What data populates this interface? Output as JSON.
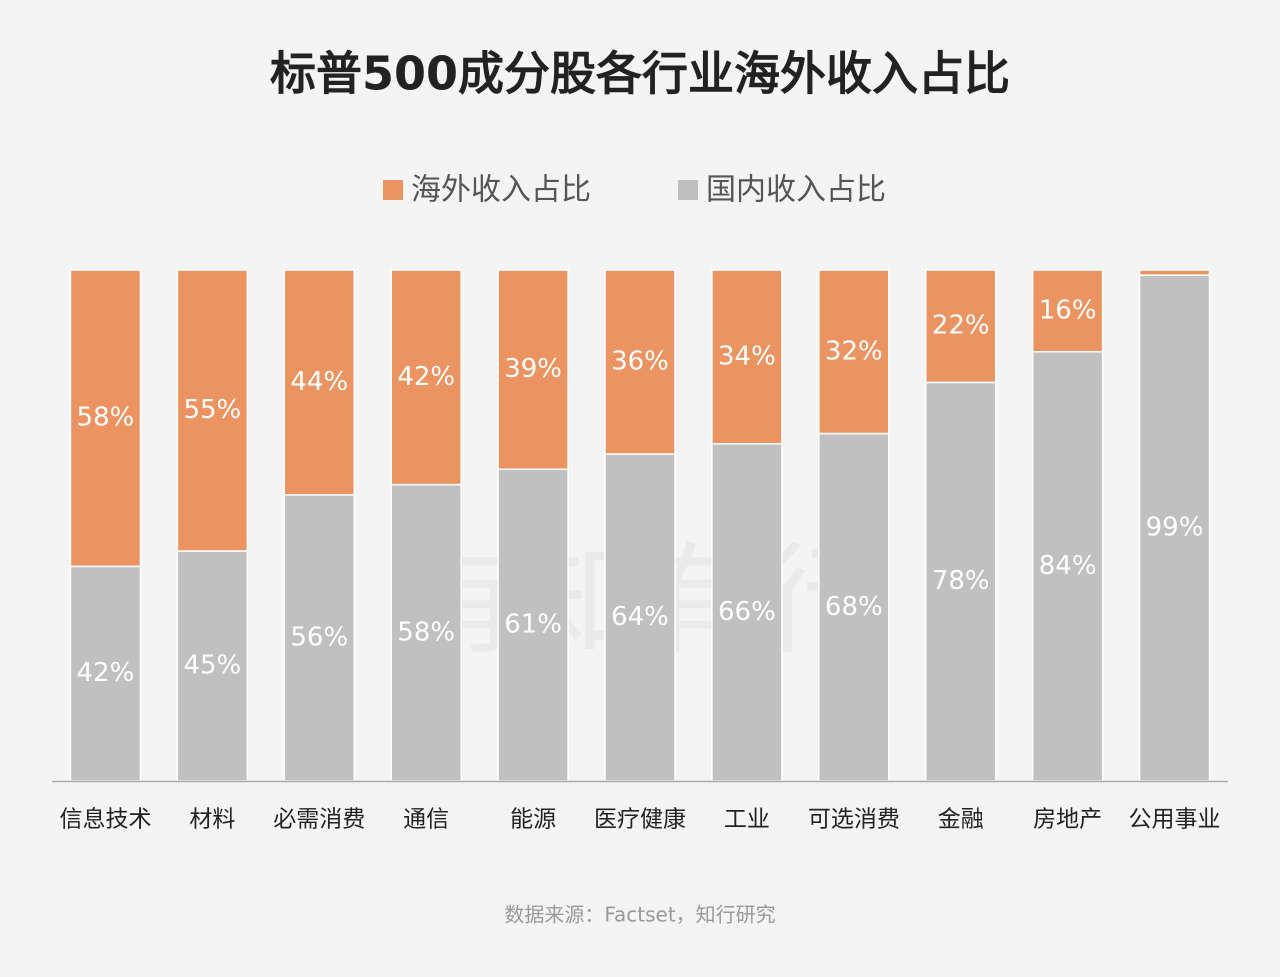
{
  "chart_data": {
    "type": "stacked_bar_100",
    "title": "标普500成分股各行业海外收入占比",
    "categories": [
      "信息技术",
      "材料",
      "必需消费",
      "通信",
      "能源",
      "医疗健康",
      "工业",
      "可选消费",
      "金融",
      "房地产",
      "公用事业"
    ],
    "series": [
      {
        "name": "国内收入占比",
        "color": "#c0c0c0",
        "values": [
          42,
          45,
          56,
          58,
          61,
          64,
          66,
          68,
          78,
          84,
          99
        ],
        "value_labels": [
          "42%",
          "45%",
          "56%",
          "58%",
          "61%",
          "64%",
          "66%",
          "68%",
          "78%",
          "84%",
          "99%"
        ]
      },
      {
        "name": "海外收入占比",
        "color": "#eb9461",
        "values": [
          58,
          55,
          44,
          42,
          39,
          36,
          34,
          32,
          22,
          16,
          1
        ],
        "value_labels": [
          "58%",
          "55%",
          "44%",
          "42%",
          "39%",
          "36%",
          "34%",
          "32%",
          "22%",
          "16%",
          null
        ]
      }
    ],
    "legend_order": [
      1,
      0
    ],
    "ylim": [
      0,
      100
    ],
    "watermark": "有知有行",
    "source": "数据来源：Factset，知行研究"
  }
}
